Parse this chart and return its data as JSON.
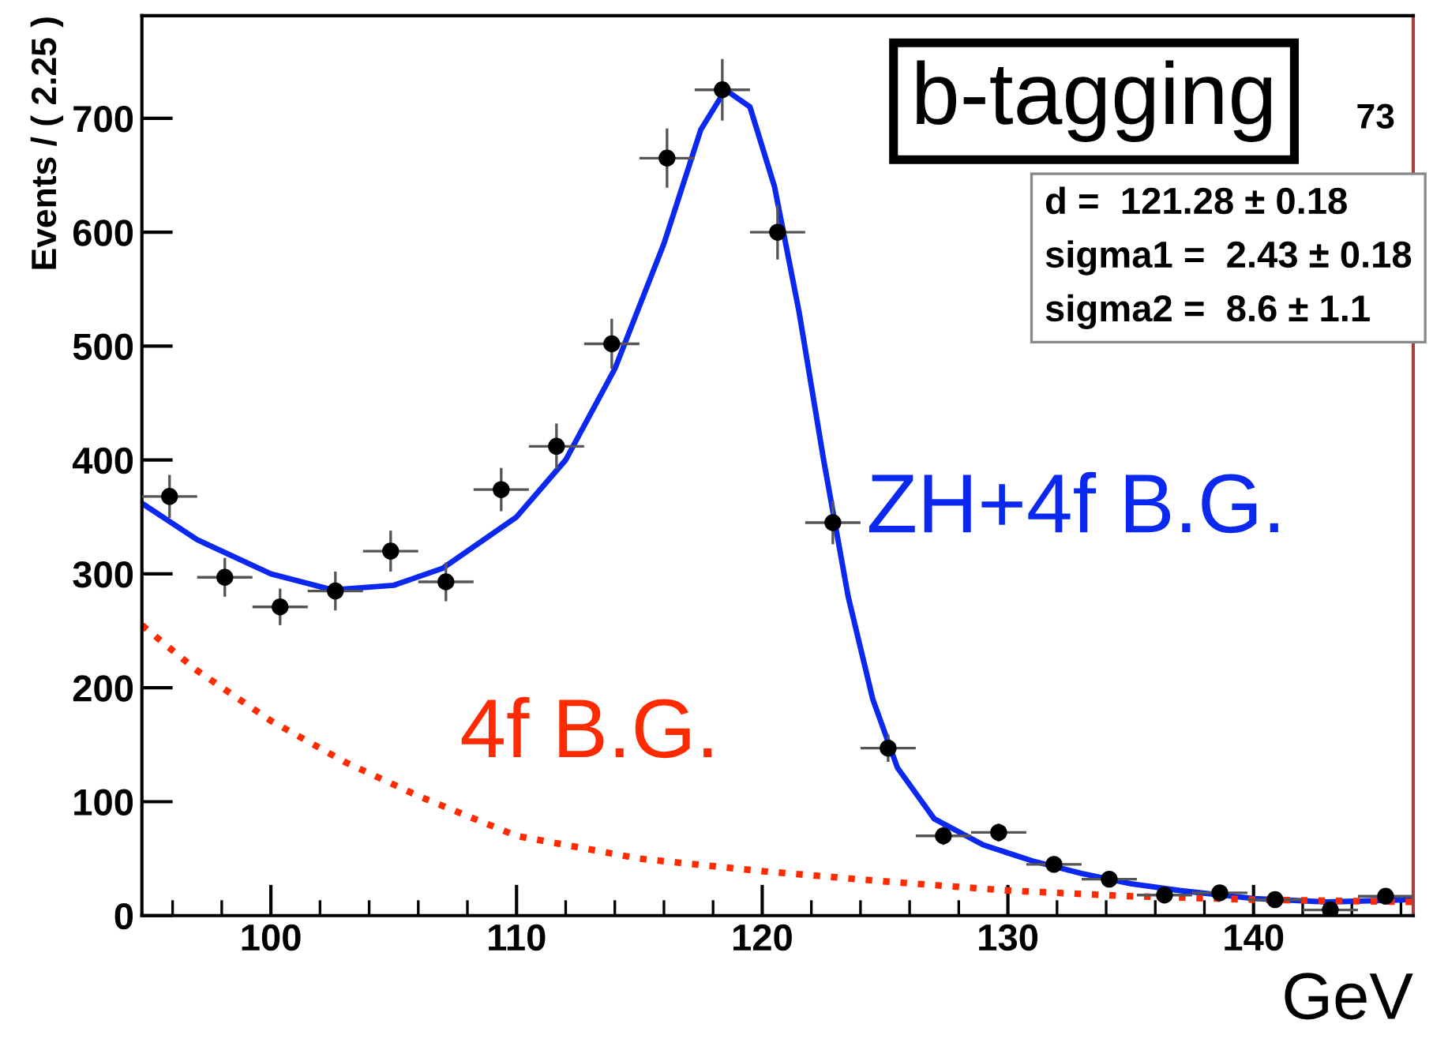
{
  "chart_data": {
    "type": "scatter",
    "xlabel": "GeV",
    "ylabel": "Events / ( 2.25 )",
    "xlim": [
      94.75,
      146.5
    ],
    "ylim": [
      0,
      790
    ],
    "xticks": [
      100,
      110,
      120,
      130,
      140
    ],
    "yticks": [
      0,
      100,
      200,
      300,
      400,
      500,
      600,
      700
    ],
    "marker": "circle",
    "grid": false,
    "legend": false,
    "series": [
      {
        "color": "#000000",
        "x": [
          95.875,
          98.125,
          100.375,
          102.625,
          104.875,
          107.125,
          109.375,
          111.625,
          113.875,
          116.125,
          118.375,
          120.625,
          122.875,
          125.125,
          127.375,
          129.625,
          131.875,
          134.125,
          136.375,
          138.625,
          140.875,
          143.125,
          145.375
        ],
        "values": [
          368,
          297,
          271,
          285,
          320,
          293,
          374,
          412,
          502,
          665,
          725,
          600,
          345,
          147,
          70,
          73,
          45,
          32,
          18,
          20,
          14,
          5,
          17
        ],
        "errors": [
          19,
          17,
          16,
          17,
          18,
          17,
          19,
          20,
          22,
          26,
          27,
          24,
          19,
          12,
          8,
          8,
          7,
          6,
          4,
          4,
          4,
          2,
          4
        ],
        "xerrors": [
          1.125,
          1.125,
          1.125,
          1.125,
          1.125,
          1.125,
          1.125,
          1.125,
          1.125,
          1.125,
          1.125,
          1.125,
          1.125,
          1.125,
          1.125,
          1.125,
          1.125,
          1.125,
          1.125,
          1.125,
          1.125,
          1.125,
          1.125
        ]
      },
      {
        "type": "line",
        "name": "ZH+4f B.G.",
        "color": "#0a28f0",
        "line_style": "solid",
        "marker": "none",
        "x": [
          94.75,
          97,
          100,
          102.5,
          105,
          107,
          110,
          112,
          114,
          116,
          117.5,
          118.5,
          119.5,
          120.5,
          121.5,
          122.5,
          123.5,
          124.5,
          125.5,
          127,
          129,
          131,
          133,
          135,
          137,
          140,
          143,
          146.5
        ],
        "values": [
          362,
          330,
          300,
          286,
          290,
          305,
          350,
          400,
          480,
          590,
          690,
          725,
          710,
          640,
          530,
          400,
          280,
          190,
          130,
          85,
          62,
          48,
          37,
          28,
          22,
          15,
          12,
          14
        ]
      },
      {
        "type": "line",
        "name": "4f B.G.",
        "color": "#ff2a00",
        "line_style": "dotted",
        "marker": "none",
        "x": [
          94.75,
          97,
          100,
          103,
          106,
          110,
          115,
          120,
          125,
          130,
          135,
          140,
          146.5
        ],
        "values": [
          255,
          215,
          171,
          135,
          105,
          70,
          50,
          39,
          30,
          22,
          17,
          14,
          12
        ]
      }
    ],
    "annotations": [
      "b-tagging",
      "73",
      "d =  121.28 ± 0.18",
      "sigma1 =  2.43 ± 0.18",
      "sigma2 =  8.6 ± 1.1"
    ]
  }
}
